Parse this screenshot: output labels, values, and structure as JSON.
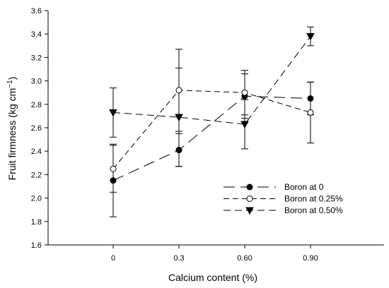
{
  "chart_data": {
    "type": "line",
    "title": "",
    "xlabel": "Calcium content (%)",
    "ylabel": "Fruit firmness (kg cm",
    "ylabel_sup": "−1",
    "ylabel_close": ")",
    "categories": [
      "0",
      "0.3",
      "0.60",
      "0.90"
    ],
    "ylim": [
      1.6,
      3.6
    ],
    "yticks": [
      "1.6",
      "1.8",
      "2.0",
      "2.2",
      "2.4",
      "2.6",
      "2.8",
      "3.0",
      "3.2",
      "3.4",
      "3.6"
    ],
    "grid": false,
    "legend_position": "lower-right",
    "series": [
      {
        "name": "Boron at 0",
        "marker": "filled-circle",
        "dash": "long-dash",
        "values": [
          2.15,
          2.41,
          2.87,
          2.85
        ],
        "errors": [
          0.31,
          0.14,
          0.19,
          0.14
        ]
      },
      {
        "name": "Boron at 0.25%",
        "marker": "open-circle",
        "dash": "medium-dash",
        "values": [
          2.25,
          2.92,
          2.9,
          2.73
        ],
        "errors": [
          0.2,
          0.35,
          0.19,
          0.26
        ]
      },
      {
        "name": "Boron at 0.50%",
        "marker": "filled-triangle-down",
        "dash": "short-dash",
        "values": [
          2.73,
          2.69,
          2.63,
          3.38
        ],
        "errors": [
          0.21,
          0.42,
          0.21,
          0.08
        ]
      }
    ]
  }
}
